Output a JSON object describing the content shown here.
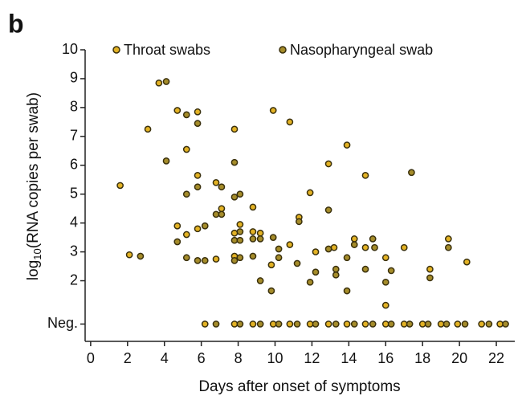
{
  "chart_data": {
    "type": "scatter",
    "panel_label": "b",
    "xlabel": "Days after onset of symptoms",
    "ylabel": "log",
    "ylabel_sub": "10",
    "ylabel_rest": "(RNA copies per swab)",
    "xlim": [
      -0.3,
      23
    ],
    "ylim": [
      -0.1,
      10
    ],
    "xticks": [
      0,
      2,
      4,
      6,
      8,
      10,
      12,
      14,
      16,
      18,
      20,
      22
    ],
    "yticks": [
      {
        "value": 0.5,
        "label": "Neg."
      },
      2,
      3,
      4,
      5,
      6,
      7,
      8,
      9,
      10
    ],
    "legend": "top",
    "series": [
      {
        "name": "Throat swabs",
        "color": "#e3b224",
        "x": [
          1.6,
          2.1,
          3.1,
          3.7,
          4.7,
          5.8,
          5.2,
          5.8,
          4.7,
          5.2,
          5.8,
          6.8,
          6.8,
          7.1,
          7.8,
          7.8,
          8.1,
          7.8,
          8.8,
          8.8,
          9.2,
          9.9,
          9.8,
          10.8,
          11.3,
          10.8,
          11.9,
          12.2,
          12.9,
          13.2,
          13.9,
          14.3,
          14.9,
          14.9,
          16.0,
          16.0,
          17.0,
          18.4,
          19.4,
          20.4,
          6.2,
          7.8,
          8.8,
          9.9,
          10.8,
          11.9,
          12.9,
          13.9,
          14.9,
          16.0,
          17.0,
          18.0,
          19.0,
          19.9,
          21.2,
          22.2
        ],
        "values": [
          5.3,
          2.9,
          7.25,
          8.85,
          7.9,
          7.85,
          6.55,
          5.65,
          3.9,
          3.6,
          3.8,
          2.75,
          5.4,
          4.5,
          7.25,
          3.65,
          3.95,
          2.85,
          4.55,
          3.7,
          3.65,
          7.9,
          2.55,
          7.5,
          4.2,
          3.25,
          5.05,
          3.0,
          6.05,
          3.15,
          6.7,
          3.45,
          5.65,
          3.15,
          2.8,
          1.15,
          3.15,
          2.4,
          3.45,
          2.65,
          0.5,
          0.5,
          0.5,
          0.5,
          0.5,
          0.5,
          0.5,
          0.5,
          0.5,
          0.5,
          0.5,
          0.5,
          0.5,
          0.5,
          0.5,
          0.5
        ]
      },
      {
        "name": "Nasopharyngeal swab",
        "color": "#a58c2a",
        "x": [
          2.7,
          4.1,
          4.1,
          5.2,
          5.8,
          5.8,
          5.2,
          4.7,
          5.2,
          6.2,
          5.8,
          6.2,
          7.1,
          6.8,
          7.1,
          7.8,
          7.8,
          8.1,
          7.8,
          8.1,
          8.1,
          8.1,
          7.8,
          8.8,
          9.2,
          8.8,
          9.2,
          9.9,
          10.2,
          10.2,
          9.8,
          11.3,
          11.2,
          11.9,
          12.2,
          12.9,
          12.9,
          13.3,
          13.3,
          13.9,
          14.3,
          13.9,
          15.4,
          14.9,
          15.3,
          16.0,
          16.3,
          17.4,
          18.4,
          19.4,
          6.8,
          8.1,
          9.2,
          10.2,
          11.2,
          12.2,
          13.3,
          14.3,
          15.3,
          16.3,
          17.3,
          18.3,
          19.3,
          20.3,
          21.6,
          22.5
        ],
        "values": [
          2.85,
          8.9,
          6.15,
          7.75,
          7.45,
          5.25,
          5.0,
          3.35,
          2.8,
          3.9,
          2.7,
          2.7,
          5.25,
          4.3,
          4.3,
          6.1,
          4.9,
          5.0,
          3.4,
          3.7,
          3.4,
          2.8,
          2.7,
          3.45,
          3.45,
          2.85,
          2.0,
          3.5,
          3.1,
          2.8,
          1.65,
          4.05,
          2.6,
          1.95,
          2.3,
          4.45,
          3.1,
          2.2,
          2.4,
          2.8,
          3.25,
          1.65,
          3.15,
          2.4,
          3.45,
          1.95,
          2.35,
          5.75,
          2.1,
          3.15,
          0.5,
          0.5,
          0.5,
          0.5,
          0.5,
          0.5,
          0.5,
          0.5,
          0.5,
          0.5,
          0.5,
          0.5,
          0.5,
          0.5,
          0.5,
          0.5
        ]
      }
    ]
  }
}
